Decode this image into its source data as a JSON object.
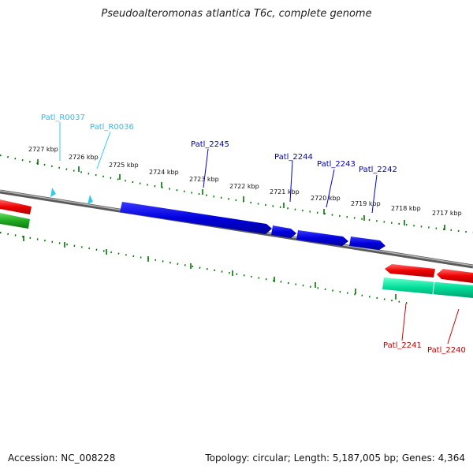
{
  "title": "Pseudoalteromonas atlantica T6c, complete genome",
  "footer": {
    "accession": "Accession: NC_008228",
    "summary": "Topology: circular; Length: 5,187,005 bp; Genes: 4,364"
  },
  "colors": {
    "backbone": "#808080",
    "forward_cds": "#0000dd",
    "reverse_cds": "#ee0000",
    "rna": "#33ccee",
    "reverse_rna": "#00dd99",
    "forward_rna": "#22aa22",
    "tick": "#007700"
  },
  "scale_labels": [
    "2727 kbp",
    "2726 kbp",
    "2725 kbp",
    "2724 kbp",
    "2723 kbp",
    "2722 kbp",
    "2721 kbp",
    "2720 kbp",
    "2719 kbp",
    "2718 kbp",
    "2717 kbp"
  ],
  "gene_labels": {
    "rna_top": [
      "Patl_R0037",
      "Patl_R0036"
    ],
    "forward": [
      "Patl_2245",
      "Patl_2244",
      "Patl_2243",
      "Patl_2242"
    ],
    "reverse": [
      "Patl_2241",
      "Patl_2240"
    ]
  }
}
